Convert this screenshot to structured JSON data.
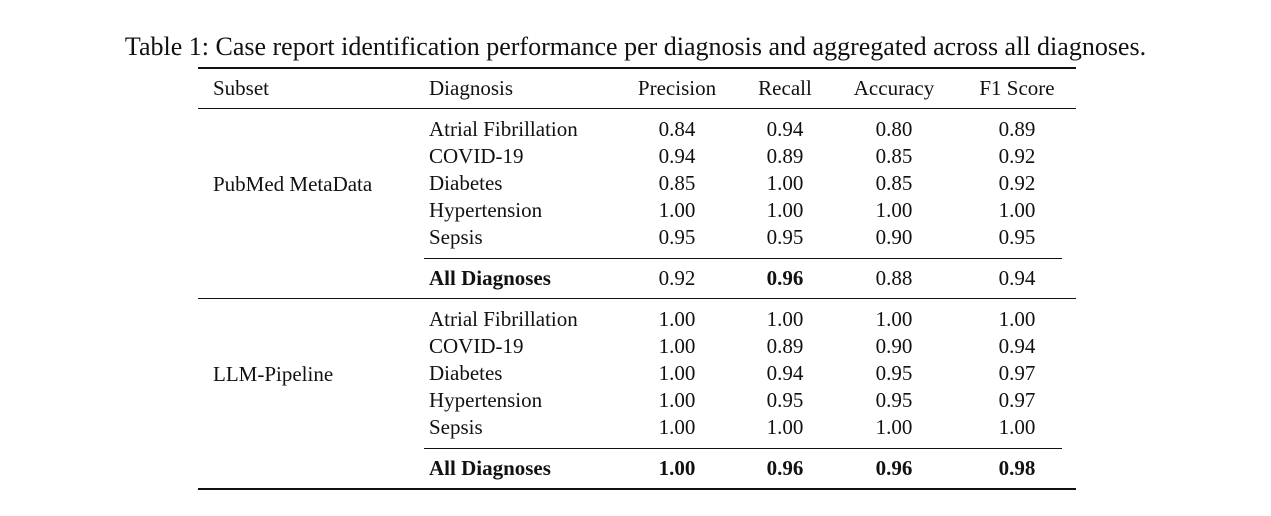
{
  "caption": "Table 1: Case report identification performance per diagnosis and aggregated across all diagnoses.",
  "headers": {
    "subset": "Subset",
    "diagnosis": "Diagnosis",
    "precision": "Precision",
    "recall": "Recall",
    "accuracy": "Accuracy",
    "f1": "F1 Score"
  },
  "groups": [
    {
      "subset": "PubMed MetaData",
      "rows": [
        {
          "diagnosis": "Atrial Fibrillation",
          "precision": "0.84",
          "recall": "0.94",
          "accuracy": "0.80",
          "f1": "0.89"
        },
        {
          "diagnosis": "COVID-19",
          "precision": "0.94",
          "recall": "0.89",
          "accuracy": "0.85",
          "f1": "0.92"
        },
        {
          "diagnosis": "Diabetes",
          "precision": "0.85",
          "recall": "1.00",
          "accuracy": "0.85",
          "f1": "0.92"
        },
        {
          "diagnosis": "Hypertension",
          "precision": "1.00",
          "recall": "1.00",
          "accuracy": "1.00",
          "f1": "1.00"
        },
        {
          "diagnosis": "Sepsis",
          "precision": "0.95",
          "recall": "0.95",
          "accuracy": "0.90",
          "f1": "0.95"
        }
      ],
      "total": {
        "diagnosis": "All Diagnoses",
        "precision": "0.92",
        "recall": "0.96",
        "accuracy": "0.88",
        "f1": "0.94",
        "bold": {
          "precision": false,
          "recall": true,
          "accuracy": false,
          "f1": false
        }
      }
    },
    {
      "subset": "LLM-Pipeline",
      "rows": [
        {
          "diagnosis": "Atrial Fibrillation",
          "precision": "1.00",
          "recall": "1.00",
          "accuracy": "1.00",
          "f1": "1.00"
        },
        {
          "diagnosis": "COVID-19",
          "precision": "1.00",
          "recall": "0.89",
          "accuracy": "0.90",
          "f1": "0.94"
        },
        {
          "diagnosis": "Diabetes",
          "precision": "1.00",
          "recall": "0.94",
          "accuracy": "0.95",
          "f1": "0.97"
        },
        {
          "diagnosis": "Hypertension",
          "precision": "1.00",
          "recall": "0.95",
          "accuracy": "0.95",
          "f1": "0.97"
        },
        {
          "diagnosis": "Sepsis",
          "precision": "1.00",
          "recall": "1.00",
          "accuracy": "1.00",
          "f1": "1.00"
        }
      ],
      "total": {
        "diagnosis": "All Diagnoses",
        "precision": "1.00",
        "recall": "0.96",
        "accuracy": "0.96",
        "f1": "0.98",
        "bold": {
          "precision": true,
          "recall": true,
          "accuracy": true,
          "f1": true
        }
      }
    }
  ]
}
